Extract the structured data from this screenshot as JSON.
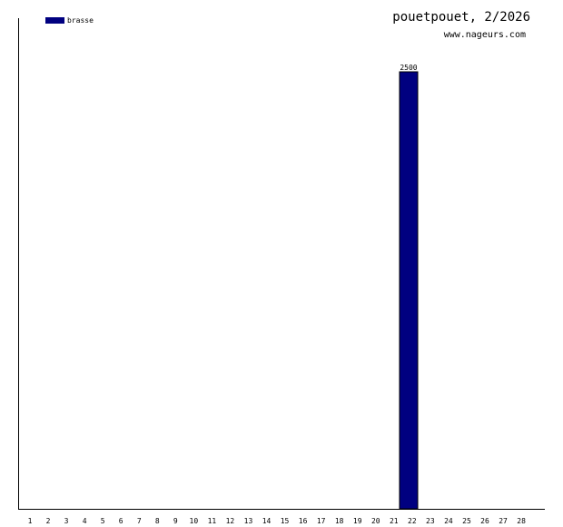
{
  "chart_data": {
    "type": "bar",
    "title": "pouetpouet, 2/2026",
    "subtitle": "www.nageurs.com",
    "xlabel": "",
    "ylabel": "",
    "categories": [
      "1",
      "2",
      "3",
      "4",
      "5",
      "6",
      "7",
      "8",
      "9",
      "10",
      "11",
      "12",
      "13",
      "14",
      "15",
      "16",
      "17",
      "18",
      "19",
      "20",
      "21",
      "22",
      "23",
      "24",
      "25",
      "26",
      "27",
      "28"
    ],
    "series": [
      {
        "name": "brasse",
        "color": "#000080",
        "values": [
          0,
          0,
          0,
          0,
          0,
          0,
          0,
          0,
          0,
          0,
          0,
          0,
          0,
          0,
          0,
          0,
          0,
          0,
          0,
          0,
          0,
          2500,
          0,
          0,
          0,
          0,
          0,
          0
        ]
      }
    ],
    "ylim": [
      0,
      2500
    ],
    "data_labels": {
      "22": "2500"
    },
    "grid": false,
    "legend": "top-left"
  }
}
